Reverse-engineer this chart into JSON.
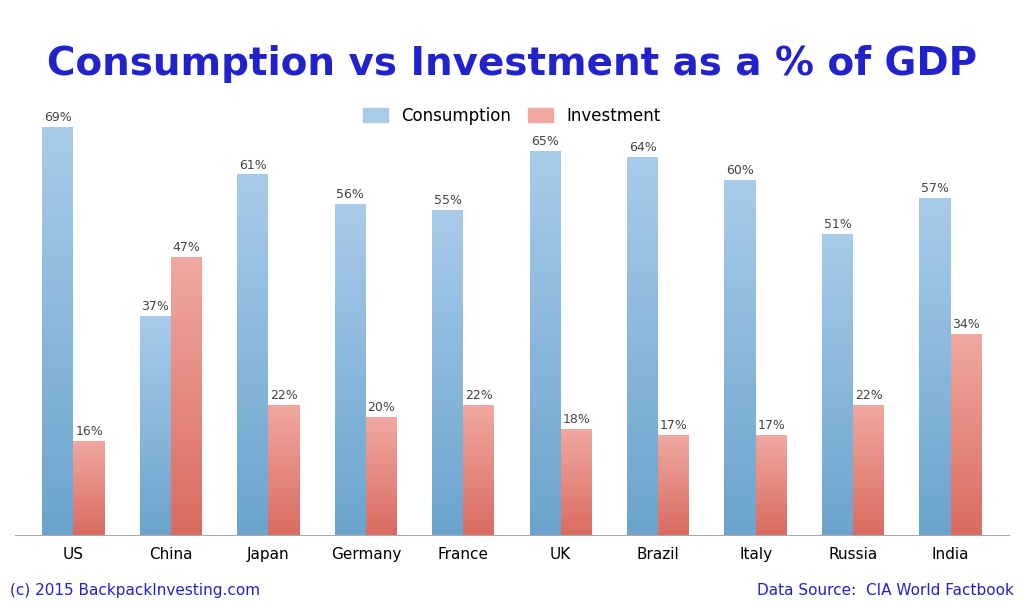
{
  "title": "Consumption vs Investment as a % of GDP",
  "categories": [
    "US",
    "China",
    "Japan",
    "Germany",
    "France",
    "UK",
    "Brazil",
    "Italy",
    "Russia",
    "India"
  ],
  "consumption": [
    69,
    37,
    61,
    56,
    55,
    65,
    64,
    60,
    51,
    57
  ],
  "investment": [
    16,
    47,
    22,
    20,
    22,
    18,
    17,
    17,
    22,
    34
  ],
  "consumption_color_top": "#A8CBEA",
  "consumption_color_bottom": "#6BA3CC",
  "investment_color_top": "#F0A8A0",
  "investment_color_bottom": "#D96B60",
  "title_color": "#2222CC",
  "title_fontsize": 28,
  "label_fontsize": 9,
  "legend_fontsize": 12,
  "bar_width": 0.32,
  "ylim_max": 75,
  "footer_left": "(c) 2015 BackpackInvesting.com",
  "footer_right": "Data Source:  CIA World Factbook",
  "footer_color": "#2222CC",
  "footer_fontsize": 11,
  "background_color": "#FFFFFF",
  "legend_consumption": "Consumption",
  "legend_investment": "Investment",
  "tick_fontsize": 11,
  "label_color": "#444444"
}
